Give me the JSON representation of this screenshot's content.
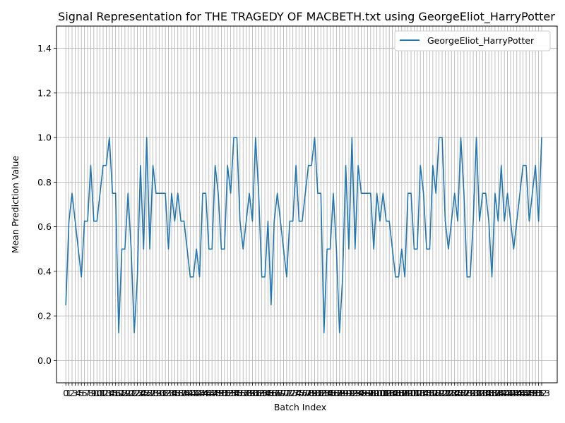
{
  "chart_data": {
    "type": "line",
    "title": "Signal Representation for THE TRAGEDY OF MACBETH.txt using GeorgeEliot_HarryPotter",
    "xlabel": "Batch Index",
    "ylabel": "Mean Prediction Value",
    "xlim": [
      -3,
      158
    ],
    "ylim": [
      -0.1,
      1.5
    ],
    "grid": true,
    "legend_position": "upper right",
    "x_tick_labels_visible": [
      "0",
      "1",
      "2",
      "3",
      "4",
      "5",
      "6",
      "7",
      "8",
      "9",
      "10",
      "11",
      "12",
      "13",
      "14",
      "15",
      "16",
      "17",
      "18",
      "19",
      "20",
      "21",
      "22",
      "23",
      "24",
      "25",
      "26",
      "27",
      "28",
      "29",
      "30",
      "31",
      "32",
      "33",
      "34",
      "35",
      "36",
      "37",
      "38",
      "39",
      "40",
      "41",
      "42",
      "43",
      "44",
      "45",
      "46",
      "47",
      "48",
      "49",
      "50",
      "51",
      "52",
      "53",
      "54",
      "55",
      "56",
      "57",
      "58",
      "59",
      "60",
      "61",
      "62",
      "63",
      "64",
      "65",
      "66",
      "67",
      "68",
      "69",
      "70",
      "71",
      "72",
      "73",
      "74",
      "75",
      "76",
      "77",
      "78",
      "79",
      "80",
      "81",
      "82",
      "83",
      "84",
      "85",
      "86",
      "87",
      "88",
      "89",
      "90",
      "91",
      "92",
      "93",
      "94",
      "95",
      "96",
      "97",
      "98",
      "99",
      "100",
      "101",
      "102",
      "103",
      "104",
      "105",
      "106",
      "107",
      "108",
      "109",
      "110",
      "111",
      "112",
      "113",
      "114",
      "115",
      "116",
      "117",
      "118",
      "119",
      "120",
      "121",
      "122",
      "123",
      "124",
      "125",
      "126",
      "127",
      "128",
      "129",
      "130",
      "131",
      "132",
      "133",
      "134",
      "135",
      "136",
      "137",
      "138",
      "139",
      "140",
      "141",
      "142",
      "143",
      "144",
      "145",
      "146",
      "147",
      "148",
      "149",
      "150",
      "151",
      "152",
      "153"
    ],
    "yticks": [
      "0.0",
      "0.2",
      "0.4",
      "0.6",
      "0.8",
      "1.0",
      "1.2",
      "1.4"
    ],
    "series": [
      {
        "name": "GeorgeEliot_HarryPotter",
        "color": "#1f77b4",
        "x": [
          0,
          1,
          2,
          3,
          4,
          5,
          6,
          7,
          8,
          9,
          10,
          11,
          12,
          13,
          14,
          15,
          16,
          17,
          18,
          19,
          20,
          21,
          22,
          23,
          24,
          25,
          26,
          27,
          28,
          29,
          30,
          31,
          32,
          33,
          34,
          35,
          36,
          37,
          38,
          39,
          40,
          41,
          42,
          43,
          44,
          45,
          46,
          47,
          48,
          49,
          50,
          51,
          52,
          53,
          54,
          55,
          56,
          57,
          58,
          59,
          60,
          61,
          62,
          63,
          64,
          65,
          66,
          67,
          68,
          69,
          70,
          71,
          72,
          73,
          74,
          75,
          76,
          77,
          78,
          79,
          80,
          81,
          82,
          83,
          84,
          85,
          86,
          87,
          88,
          89,
          90,
          91,
          92,
          93,
          94,
          95,
          96,
          97,
          98,
          99,
          100,
          101,
          102,
          103,
          104,
          105,
          106,
          107,
          108,
          109,
          110,
          111,
          112,
          113,
          114,
          115,
          116,
          117,
          118,
          119,
          120,
          121,
          122,
          123,
          124,
          125,
          126,
          127,
          128,
          129,
          130,
          131,
          132,
          133,
          134,
          135,
          136,
          137,
          138,
          139,
          140,
          141,
          142,
          143,
          144,
          145,
          146,
          147,
          148,
          149,
          150,
          151,
          152,
          153
        ],
        "values": [
          0.25,
          0.625,
          0.75,
          0.625,
          0.5,
          0.375,
          0.625,
          0.625,
          0.875,
          0.625,
          0.625,
          0.75,
          0.875,
          0.875,
          1.0,
          0.75,
          0.75,
          0.125,
          0.5,
          0.5,
          0.75,
          0.5,
          0.125,
          0.375,
          0.875,
          0.5,
          1.0,
          0.5,
          0.875,
          0.75,
          0.75,
          0.75,
          0.75,
          0.5,
          0.75,
          0.625,
          0.75,
          0.625,
          0.625,
          0.5,
          0.375,
          0.375,
          0.5,
          0.375,
          0.75,
          0.75,
          0.5,
          0.5,
          0.875,
          0.75,
          0.5,
          0.5,
          0.875,
          0.75,
          1.0,
          1.0,
          0.625,
          0.5,
          0.625,
          0.75,
          0.625,
          1.0,
          0.75,
          0.375,
          0.375,
          0.625,
          0.25,
          0.625,
          0.75,
          0.625,
          0.5,
          0.375,
          0.625,
          0.625,
          0.875,
          0.625,
          0.625,
          0.75,
          0.875,
          0.875,
          1.0,
          0.75,
          0.75,
          0.125,
          0.5,
          0.5,
          0.75,
          0.5,
          0.125,
          0.375,
          0.875,
          0.5,
          1.0,
          0.5,
          0.875,
          0.75,
          0.75,
          0.75,
          0.75,
          0.5,
          0.75,
          0.625,
          0.75,
          0.625,
          0.625,
          0.5,
          0.375,
          0.375,
          0.5,
          0.375,
          0.75,
          0.75,
          0.5,
          0.5,
          0.875,
          0.75,
          0.5,
          0.5,
          0.875,
          0.75,
          1.0,
          1.0,
          0.625,
          0.5,
          0.625,
          0.75,
          0.625,
          1.0,
          0.75,
          0.375,
          0.375,
          0.625,
          1.0,
          0.625,
          0.75,
          0.75,
          0.625,
          0.375,
          0.75,
          0.625,
          0.875,
          0.625,
          0.75,
          0.625,
          0.5,
          0.625,
          0.75,
          0.875,
          0.875,
          0.625,
          0.75,
          0.875,
          0.625,
          1.0
        ]
      }
    ]
  }
}
